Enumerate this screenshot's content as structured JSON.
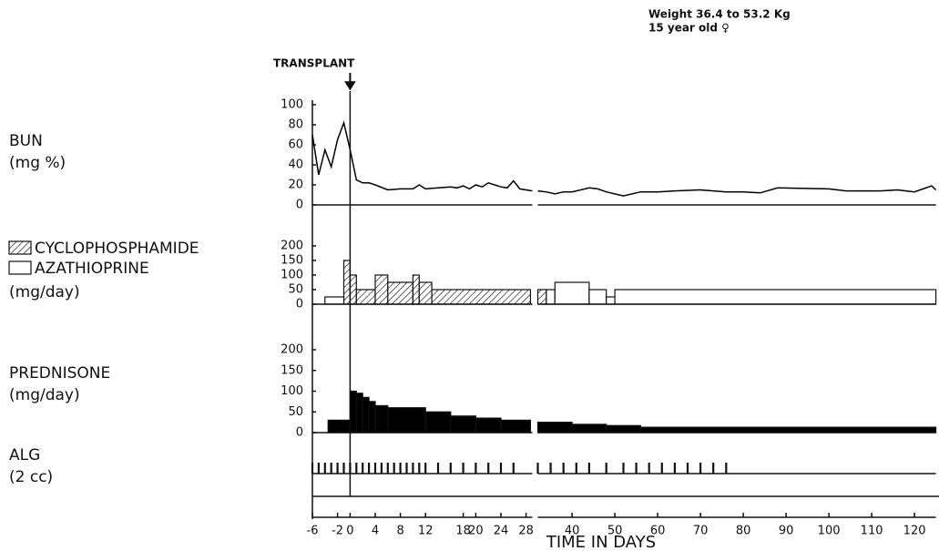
{
  "header": {
    "lines": [
      "Weight 36.4 to 53.2 Kg",
      "15 year old ♀"
    ]
  },
  "transplant": {
    "label": "TRANSPLANT",
    "day": 0
  },
  "x_axis": {
    "label": "TIME IN DAYS",
    "xlim": [
      -6,
      125
    ],
    "x_break": [
      29,
      32
    ],
    "xticks": [
      -6,
      -2,
      0,
      4,
      8,
      12,
      18,
      20,
      24,
      28,
      40,
      50,
      60,
      70,
      80,
      90,
      100,
      110,
      120
    ]
  },
  "chart_data": [
    {
      "type": "line",
      "title": "BUN",
      "ylabel": "(mg %)",
      "ylim": [
        0,
        100
      ],
      "yticks": [
        0,
        20,
        40,
        60,
        80,
        100
      ],
      "color": "#000",
      "x": [
        -6,
        -5,
        -4,
        -3,
        -2,
        -1,
        0,
        0.5,
        1,
        2,
        3,
        4,
        6,
        8,
        10,
        11,
        12,
        14,
        16,
        17,
        18,
        19,
        20,
        21,
        22,
        23,
        24,
        25,
        26,
        27,
        29,
        30,
        32,
        34,
        36,
        38,
        40,
        44,
        46,
        48,
        52,
        56,
        60,
        64,
        70,
        76,
        80,
        84,
        88,
        100,
        104,
        112,
        116,
        120,
        124,
        125
      ],
      "values": [
        70,
        30,
        55,
        38,
        65,
        82,
        55,
        40,
        25,
        22,
        22,
        20,
        15,
        16,
        16,
        20,
        16,
        17,
        18,
        17,
        19,
        16,
        20,
        18,
        22,
        20,
        18,
        17,
        24,
        16,
        14,
        null,
        14,
        13,
        11,
        13,
        13,
        17,
        16,
        13,
        9,
        13,
        13,
        14,
        15,
        13,
        13,
        12,
        17,
        16,
        14,
        14,
        15,
        13,
        19,
        15
      ]
    },
    {
      "type": "step",
      "ylabel": "(mg/day)",
      "ylim": [
        0,
        200
      ],
      "yticks": [
        0,
        50,
        100,
        150,
        200
      ],
      "series": [
        {
          "name": "CYCLOPHOSPHAMIDE",
          "fill": "hatch",
          "x_start": [
            -1,
            0,
            1,
            4,
            6,
            10,
            11,
            13,
            32
          ],
          "x_end": [
            0,
            1,
            4,
            6,
            10,
            11,
            13,
            28.7,
            34
          ],
          "values": [
            150,
            100,
            50,
            100,
            75,
            100,
            75,
            50,
            50
          ]
        },
        {
          "name": "AZATHIOPRINE",
          "fill": "#ffffff",
          "x_start": [
            -4,
            34,
            36,
            44,
            48,
            50
          ],
          "x_end": [
            -1,
            36,
            44,
            48,
            50,
            125
          ],
          "values": [
            25,
            50,
            75,
            50,
            25,
            50
          ]
        }
      ]
    },
    {
      "type": "step",
      "title": "PREDNISONE",
      "ylabel": "(mg/day)",
      "ylim": [
        0,
        200
      ],
      "yticks": [
        0,
        50,
        100,
        150,
        200
      ],
      "series": [
        {
          "fill": "#000000",
          "x_start": [
            -3.5,
            0,
            1,
            2,
            3,
            4,
            6,
            12,
            16,
            20,
            24,
            32,
            40,
            48,
            56
          ],
          "x_end": [
            0,
            1,
            2,
            3,
            4,
            6,
            12,
            16,
            20,
            24,
            28.7,
            40,
            48,
            56,
            125
          ],
          "values": [
            30,
            100,
            95,
            85,
            75,
            65,
            60,
            50,
            40,
            35,
            30,
            25,
            20,
            17,
            13
          ]
        }
      ]
    },
    {
      "type": "event",
      "title": "ALG",
      "ylabel": "(2 cc)",
      "x": [
        -6,
        -5,
        -4,
        -3,
        -2,
        -1,
        0,
        1,
        2,
        3,
        4,
        5,
        6,
        7,
        8,
        9,
        10,
        11,
        12,
        14,
        16,
        18,
        20,
        22,
        24,
        26,
        32,
        35,
        38,
        41,
        44,
        48,
        52,
        55,
        58,
        61,
        64,
        67,
        70,
        73,
        76
      ]
    }
  ]
}
